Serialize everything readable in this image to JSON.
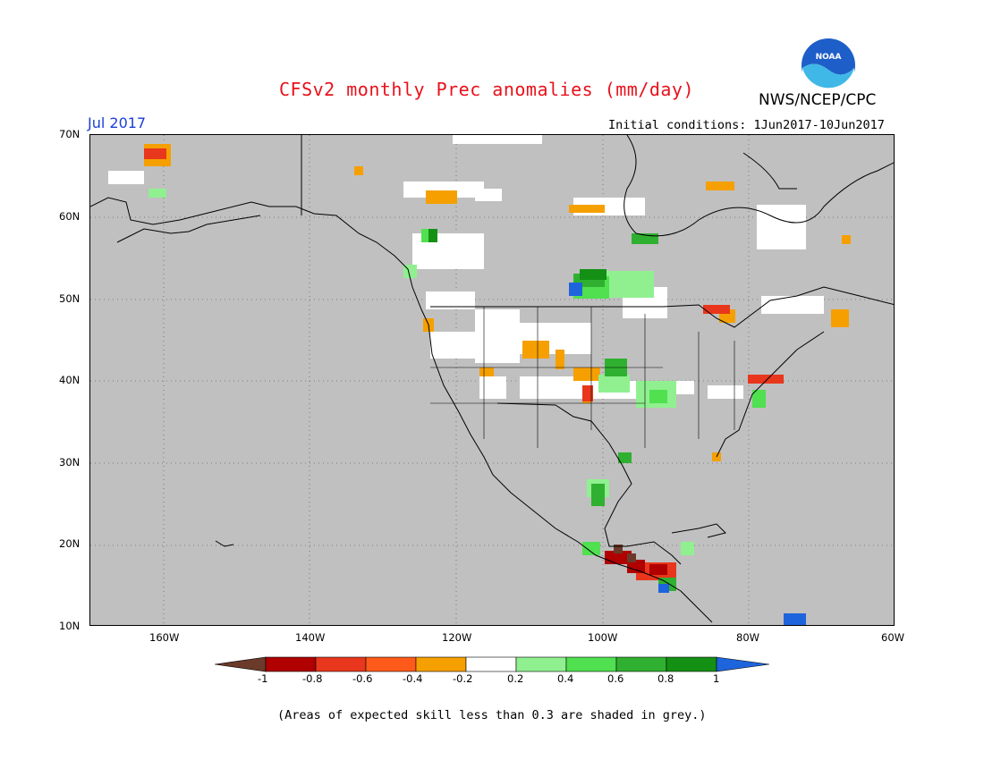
{
  "title": "CFSv2 monthly Prec anomalies (mm/day)",
  "agency": "NWS/NCEP/CPC",
  "logo_text": "NOAA",
  "month": "Jul 2017",
  "initial_conditions": "Initial conditions: 1Jun2017-10Jun2017",
  "lat_labels": [
    "70N",
    "60N",
    "50N",
    "40N",
    "30N",
    "20N",
    "10N"
  ],
  "lon_labels": [
    "160W",
    "140W",
    "120W",
    "100W",
    "80W",
    "60W"
  ],
  "colorbar": {
    "labels": [
      "-1",
      "-0.8",
      "-0.6",
      "-0.4",
      "-0.2",
      "0.2",
      "0.4",
      "0.6",
      "0.8",
      "1"
    ],
    "colors": [
      "#6b3a2a",
      "#b00000",
      "#e8371c",
      "#ff5a1a",
      "#f5a000",
      "#ffffff",
      "#90f090",
      "#50e050",
      "#30b030",
      "#149014",
      "#1e64dc"
    ]
  },
  "footnote": "(Areas of expected skill less than 0.3 are shaded in grey.)",
  "colors": {
    "grey_mask": "#c0c0c0",
    "white_near_zero": "#ffffff",
    "title_red": "#e8111b",
    "month_blue": "#1a3fd6"
  }
}
